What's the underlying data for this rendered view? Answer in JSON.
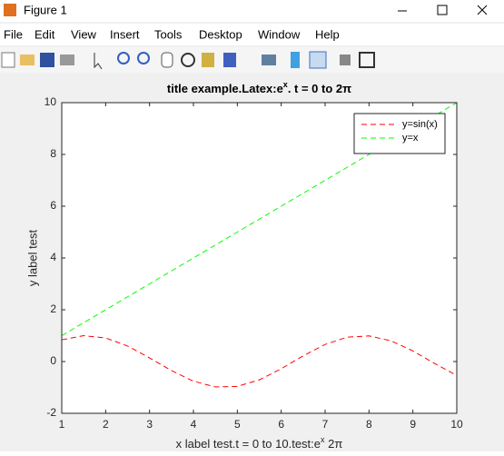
{
  "window": {
    "title": "Figure 1",
    "menu": [
      "File",
      "Edit",
      "View",
      "Insert",
      "Tools",
      "Desktop",
      "Window",
      "Help"
    ]
  },
  "chart_data": {
    "type": "line",
    "title": [
      "title example.Latex:e",
      "x",
      ". t = 0 to 2π"
    ],
    "x_label": [
      "x label test.t = 0 to 10.test:e",
      "x",
      " 2π"
    ],
    "y_label": "y label test",
    "x": [
      1,
      1.5,
      2,
      2.5,
      3,
      3.5,
      4,
      4.5,
      5,
      5.5,
      6,
      6.5,
      7,
      7.5,
      8,
      8.5,
      9,
      9.5,
      10
    ],
    "series": [
      {
        "name": "y=sin(x)",
        "color": "#ff0000",
        "values": [
          0.84,
          1.0,
          0.91,
          0.6,
          0.14,
          -0.35,
          -0.76,
          -0.98,
          -0.96,
          -0.71,
          -0.28,
          0.22,
          0.66,
          0.94,
          0.99,
          0.8,
          0.41,
          -0.08,
          -0.54
        ]
      },
      {
        "name": "y=x",
        "color": "#00ff00",
        "values": [
          1,
          1.5,
          2,
          2.5,
          3,
          3.5,
          4,
          4.5,
          5,
          5.5,
          6,
          6.5,
          7,
          7.5,
          8,
          8.5,
          9,
          9.5,
          10
        ]
      }
    ],
    "xlim": [
      1,
      10
    ],
    "xticks": [
      1,
      2,
      3,
      4,
      5,
      6,
      7,
      8,
      9,
      10
    ],
    "ylim": [
      -2,
      10
    ],
    "yticks": [
      -2,
      0,
      2,
      4,
      6,
      8,
      10
    ],
    "legend": "upper-right",
    "grid": false
  }
}
